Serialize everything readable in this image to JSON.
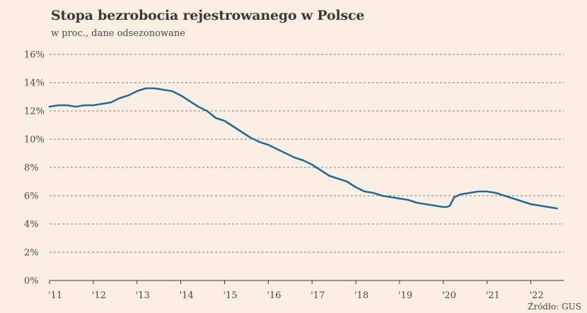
{
  "chart_data": {
    "type": "line",
    "title": "Stopa bezrobocia rejestrowanego w Polsce",
    "subtitle": "w proc., dane odsezonowane",
    "source": "Źródło: GUS",
    "ylim": [
      0,
      16
    ],
    "yticks": [
      0,
      2,
      4,
      6,
      8,
      10,
      12,
      14,
      16
    ],
    "ytick_labels": [
      "0%",
      "2%",
      "4%",
      "6%",
      "8%",
      "10%",
      "12%",
      "14%",
      "16%"
    ],
    "xlim": [
      2011.0,
      2022.75
    ],
    "xticks": [
      2011,
      2012,
      2013,
      2014,
      2015,
      2016,
      2017,
      2018,
      2019,
      2020,
      2021,
      2022
    ],
    "xtick_labels": [
      "'11",
      "'12",
      "'13",
      "'14",
      "'15",
      "'16",
      "'17",
      "'18",
      "'19",
      "'20",
      "'21",
      "'22"
    ],
    "grid": true,
    "line_color": "#1f6e99",
    "series": [
      {
        "x": [
          2011.0,
          2011.2,
          2011.4,
          2011.6,
          2011.8,
          2012.0,
          2012.2,
          2012.4,
          2012.6,
          2012.8,
          2013.0,
          2013.2,
          2013.4,
          2013.6,
          2013.8,
          2014.0,
          2014.2,
          2014.4,
          2014.6,
          2014.8,
          2015.0,
          2015.2,
          2015.4,
          2015.6,
          2015.8,
          2016.0,
          2016.2,
          2016.4,
          2016.6,
          2016.8,
          2017.0,
          2017.2,
          2017.4,
          2017.6,
          2017.8,
          2018.0,
          2018.2,
          2018.4,
          2018.6,
          2018.8,
          2019.0,
          2019.2,
          2019.4,
          2019.6,
          2019.8,
          2020.0,
          2020.08,
          2020.15,
          2020.25,
          2020.4,
          2020.6,
          2020.8,
          2021.0,
          2021.2,
          2021.4,
          2021.6,
          2021.8,
          2022.0,
          2022.2,
          2022.4,
          2022.6
        ],
        "values": [
          12.3,
          12.4,
          12.4,
          12.3,
          12.4,
          12.4,
          12.5,
          12.6,
          12.9,
          13.1,
          13.4,
          13.6,
          13.6,
          13.5,
          13.4,
          13.1,
          12.7,
          12.3,
          12.0,
          11.5,
          11.3,
          10.9,
          10.5,
          10.1,
          9.8,
          9.6,
          9.3,
          9.0,
          8.7,
          8.5,
          8.2,
          7.8,
          7.4,
          7.2,
          7.0,
          6.6,
          6.3,
          6.2,
          6.0,
          5.9,
          5.8,
          5.7,
          5.5,
          5.4,
          5.3,
          5.2,
          5.2,
          5.3,
          5.9,
          6.1,
          6.2,
          6.3,
          6.3,
          6.2,
          6.0,
          5.8,
          5.6,
          5.4,
          5.3,
          5.2,
          5.1
        ]
      }
    ]
  }
}
